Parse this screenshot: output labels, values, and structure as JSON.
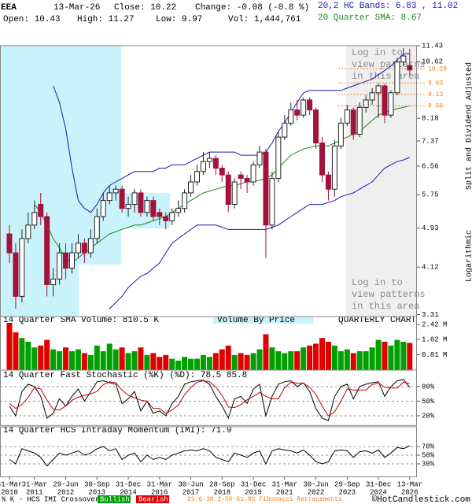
{
  "header": {
    "symbol": "EEA",
    "date": "13-Mar-26",
    "close": "Close: 10.22",
    "change": "Change: -0.08 (-0.8 %)",
    "open": "Open: 10.43",
    "high": "High: 11.27",
    "low": "Low: 9.97",
    "volume": "Vol: 1,444,761",
    "bands": "20,2 HC Bands: 6.83 , 11.02",
    "sma": "20 Quarter SMA: 8.67"
  },
  "side_labels": {
    "adjusted": "Split and Dividend Adjusted",
    "scale": "Logarithmic"
  },
  "overlay": {
    "login": [
      "Log in to",
      "view patterns",
      "in this area"
    ]
  },
  "chart_data": [
    {
      "type": "candlestick",
      "categories": [
        {
          "date": "31-Mar",
          "year": "2010"
        },
        null,
        null,
        null,
        {
          "date": "31-Mar",
          "year": "2011"
        },
        null,
        null,
        null,
        null,
        {
          "date": "29-Jun",
          "year": "2012"
        },
        null,
        null,
        null,
        null,
        {
          "date": "30-Sep",
          "year": "2013"
        },
        null,
        null,
        null,
        null,
        {
          "date": "31-Dec",
          "year": "2014"
        },
        null,
        null,
        null,
        null,
        {
          "date": "31-Mar",
          "year": "2016"
        },
        null,
        null,
        null,
        null,
        {
          "date": "30-Jun",
          "year": "2017"
        },
        null,
        null,
        null,
        null,
        {
          "date": "28-Sep",
          "year": "2018"
        },
        null,
        null,
        null,
        null,
        {
          "date": "31-Dec",
          "year": "2019"
        },
        null,
        null,
        null,
        null,
        {
          "date": "31-Mar",
          "year": "2021"
        },
        null,
        null,
        null,
        null,
        {
          "date": "30-Jun",
          "year": "2022"
        },
        null,
        null,
        null,
        null,
        {
          "date": "29-Sep",
          "year": "2023"
        },
        null,
        null,
        null,
        null,
        {
          "date": "31-Dec",
          "year": "2024"
        },
        null,
        null,
        null,
        null,
        {
          "date": "13-Mar",
          "year": "2026"
        }
      ],
      "open": [
        4.8,
        4.4,
        3.6,
        4.7,
        5.0,
        5.5,
        5.2,
        3.8,
        3.9,
        4.4,
        4.1,
        4.4,
        4.6,
        4.4,
        4.7,
        5.2,
        5.6,
        5.8,
        5.9,
        5.4,
        5.5,
        5.8,
        5.3,
        5.6,
        5.3,
        5.2,
        5.1,
        5.3,
        5.4,
        5.8,
        6.1,
        6.4,
        6.7,
        6.8,
        6.5,
        6.3,
        5.5,
        6.3,
        6.2,
        6.1,
        6.6,
        7.0,
        5.0,
        6.2,
        7.5,
        8.0,
        8.5,
        8.3,
        8.9,
        8.5,
        7.3,
        6.3,
        5.9,
        7.2,
        8.0,
        8.5,
        7.6,
        8.6,
        8.9,
        9.2,
        9.5,
        8.3,
        9.2,
        10.6,
        10.43
      ],
      "high": [
        5.0,
        4.6,
        4.9,
        5.3,
        5.6,
        5.8,
        5.3,
        4.1,
        4.6,
        4.6,
        4.6,
        4.8,
        4.7,
        4.9,
        5.4,
        5.8,
        6.0,
        6.0,
        6.0,
        5.7,
        5.9,
        5.9,
        5.7,
        5.7,
        5.4,
        5.3,
        5.4,
        5.6,
        5.9,
        6.3,
        6.6,
        7.0,
        7.0,
        6.9,
        6.6,
        6.4,
        6.2,
        6.4,
        6.3,
        6.7,
        7.2,
        7.1,
        6.4,
        7.7,
        8.3,
        8.8,
        8.9,
        9.0,
        9.0,
        8.6,
        7.5,
        6.4,
        7.4,
        8.2,
        8.7,
        8.6,
        8.8,
        9.1,
        9.4,
        9.6,
        9.6,
        9.3,
        10.8,
        11.3,
        11.27
      ],
      "low": [
        4.2,
        3.4,
        3.5,
        4.6,
        4.9,
        5.0,
        3.6,
        3.6,
        3.8,
        3.9,
        4.0,
        4.3,
        4.2,
        4.3,
        4.6,
        5.1,
        5.5,
        5.6,
        5.3,
        5.2,
        5.3,
        5.2,
        5.2,
        5.1,
        5.0,
        4.9,
        5.0,
        5.2,
        5.3,
        5.7,
        6.0,
        6.3,
        6.5,
        6.3,
        6.1,
        5.3,
        5.4,
        5.9,
        5.8,
        6.0,
        6.5,
        4.3,
        4.9,
        6.1,
        7.4,
        7.9,
        8.1,
        8.2,
        8.3,
        7.1,
        6.1,
        5.6,
        5.7,
        7.1,
        7.9,
        7.4,
        7.5,
        8.4,
        8.7,
        8.2,
        8.0,
        8.2,
        9.1,
        10.4,
        9.97
      ],
      "close": [
        4.4,
        3.6,
        4.7,
        5.0,
        5.3,
        5.2,
        3.8,
        3.9,
        4.4,
        4.1,
        4.4,
        4.6,
        4.4,
        4.7,
        5.2,
        5.6,
        5.8,
        5.9,
        5.4,
        5.5,
        5.8,
        5.3,
        5.6,
        5.2,
        5.2,
        5.1,
        5.3,
        5.4,
        5.8,
        6.1,
        6.4,
        6.7,
        6.8,
        6.5,
        6.3,
        5.5,
        6.1,
        6.2,
        6.1,
        6.6,
        7.0,
        5.0,
        6.2,
        7.5,
        8.0,
        8.5,
        8.3,
        8.9,
        8.5,
        7.3,
        6.3,
        5.9,
        7.2,
        8.0,
        8.5,
        7.6,
        8.6,
        8.9,
        9.2,
        9.5,
        8.3,
        9.2,
        10.6,
        10.9,
        10.22
      ],
      "up_color": "#1f7a1f",
      "down_color": "#a3123c",
      "log_scale": true,
      "ylim": [
        3.28,
        11.43
      ],
      "yticks": [
        3.31,
        4.12,
        4.93,
        5.75,
        6.56,
        7.37,
        8.18,
        10.62,
        11.43
      ],
      "overlays": [
        {
          "color": "#1a1ab0",
          "values": [
            null,
            null,
            null,
            null,
            null,
            null,
            null,
            9.5,
            8.8,
            7.8,
            6.5,
            5.6,
            5.4,
            5.3,
            5.5,
            5.8,
            6.0,
            6.1,
            6.2,
            6.3,
            6.4,
            6.4,
            6.4,
            6.4,
            6.5,
            6.5,
            6.6,
            6.6,
            6.6,
            6.7,
            6.8,
            6.9,
            7.0,
            7.0,
            7.0,
            7.0,
            7.0,
            6.9,
            6.9,
            6.9,
            6.9,
            7.0,
            7.3,
            7.7,
            8.0,
            8.4,
            8.8,
            9.2,
            9.3,
            9.3,
            9.3,
            9.3,
            9.3,
            9.3,
            9.4,
            9.5,
            9.6,
            9.7,
            9.8,
            10.0,
            10.2,
            10.4,
            10.7,
            11.0,
            11.02
          ]
        },
        {
          "color": "#1a1ab0",
          "values": [
            null,
            null,
            null,
            null,
            null,
            null,
            null,
            null,
            null,
            null,
            null,
            null,
            null,
            null,
            null,
            null,
            3.4,
            3.5,
            3.6,
            3.75,
            3.85,
            3.95,
            4.0,
            4.1,
            4.2,
            4.4,
            4.6,
            4.7,
            4.8,
            4.9,
            5.0,
            5.0,
            5.0,
            5.0,
            4.95,
            4.9,
            4.9,
            4.9,
            4.9,
            4.9,
            4.9,
            4.9,
            4.95,
            5.0,
            5.1,
            5.2,
            5.3,
            5.4,
            5.5,
            5.5,
            5.5,
            5.55,
            5.6,
            5.7,
            5.75,
            5.8,
            5.9,
            6.0,
            6.1,
            6.3,
            6.5,
            6.6,
            6.7,
            6.75,
            6.83
          ]
        },
        {
          "color": "#1a8a1a",
          "values": [
            null,
            null,
            null,
            null,
            5.5,
            5.3,
            5.0,
            4.7,
            4.5,
            4.3,
            4.2,
            4.3,
            4.4,
            4.5,
            4.6,
            4.7,
            4.8,
            4.85,
            4.9,
            4.95,
            5.0,
            5.0,
            5.05,
            5.1,
            5.15,
            5.2,
            5.3,
            5.4,
            5.5,
            5.6,
            5.7,
            5.8,
            5.85,
            5.9,
            5.95,
            6.0,
            6.0,
            6.05,
            6.1,
            6.1,
            6.15,
            6.2,
            6.3,
            6.5,
            6.7,
            6.9,
            7.0,
            7.1,
            7.15,
            7.2,
            7.2,
            7.2,
            7.3,
            7.4,
            7.5,
            7.6,
            7.7,
            7.9,
            8.1,
            8.3,
            8.4,
            8.5,
            8.55,
            8.6,
            8.67
          ]
        }
      ],
      "fibonacci": {
        "color": "#f08020",
        "levels": [
          10.28,
          9.63,
          9.13,
          8.66
        ]
      }
    },
    {
      "type": "bar",
      "title": "14 Quarter SMA Volume: 810.5 K",
      "subtitle": "Volume By Price",
      "label": "QUARTERLY CHART",
      "values": [
        2.5,
        2.0,
        1.7,
        1.5,
        1.2,
        1.3,
        1.6,
        1.1,
        1.0,
        1.2,
        1.0,
        1.1,
        0.9,
        0.8,
        1.3,
        1.0,
        1.4,
        1.1,
        1.2,
        0.9,
        1.0,
        1.2,
        0.8,
        0.9,
        0.7,
        0.8,
        0.6,
        0.5,
        0.7,
        0.6,
        0.6,
        0.8,
        0.7,
        0.9,
        1.1,
        1.3,
        0.8,
        0.9,
        0.8,
        0.9,
        1.1,
        1.9,
        1.2,
        1.0,
        0.9,
        1.0,
        1.0,
        1.2,
        1.3,
        1.4,
        1.7,
        1.5,
        1.3,
        1.0,
        1.1,
        0.9,
        1.0,
        1.0,
        1.2,
        1.6,
        1.5,
        1.3,
        1.6,
        1.5,
        1.44
      ],
      "up_color": "#00a000",
      "down_color": "#e00000",
      "ylim": [
        0,
        2.5
      ],
      "yticks": [
        {
          "value": 0.81,
          "label": "0.81 M"
        },
        {
          "value": 1.62,
          "label": "1.62 M"
        },
        {
          "value": 2.42,
          "label": "2.42 M"
        }
      ]
    },
    {
      "type": "line",
      "title": "14 Quarter Fast Stochastic (%K) (%D): 78.5 85.8",
      "series": [
        {
          "color": "#000000",
          "values": [
            40,
            20,
            70,
            85,
            80,
            60,
            15,
            25,
            55,
            40,
            60,
            75,
            50,
            70,
            90,
            92,
            88,
            85,
            45,
            55,
            70,
            30,
            50,
            25,
            30,
            20,
            45,
            60,
            85,
            90,
            92,
            93,
            85,
            60,
            40,
            15,
            55,
            60,
            45,
            75,
            85,
            20,
            60,
            85,
            90,
            92,
            80,
            88,
            70,
            35,
            15,
            10,
            60,
            80,
            85,
            55,
            80,
            85,
            88,
            90,
            60,
            80,
            92,
            95,
            78.5
          ]
        },
        {
          "color": "#c00000",
          "values": [
            45,
            35,
            43,
            58,
            78,
            75,
            52,
            33,
            32,
            40,
            52,
            58,
            62,
            65,
            70,
            84,
            90,
            88,
            73,
            62,
            57,
            52,
            50,
            35,
            35,
            25,
            32,
            42,
            63,
            78,
            89,
            92,
            90,
            79,
            62,
            38,
            37,
            43,
            53,
            60,
            68,
            60,
            55,
            55,
            78,
            89,
            87,
            87,
            79,
            64,
            40,
            20,
            28,
            50,
            75,
            73,
            73,
            73,
            84,
            88,
            79,
            77,
            77,
            89,
            85.8
          ]
        }
      ],
      "ylim": [
        0,
        100
      ],
      "grid": true,
      "yticks": [
        {
          "value": 20,
          "label": "20%"
        },
        {
          "value": 50,
          "label": "50%"
        },
        {
          "value": 80,
          "label": "80%"
        }
      ]
    },
    {
      "type": "line",
      "title": "14 Quarter HCS Intraday Momentum (IMI): 71.9",
      "series": [
        {
          "color": "#000000",
          "values": [
            40,
            30,
            65,
            60,
            55,
            45,
            25,
            40,
            55,
            50,
            55,
            60,
            50,
            55,
            65,
            70,
            60,
            65,
            40,
            50,
            55,
            35,
            50,
            40,
            45,
            40,
            50,
            55,
            60,
            62,
            60,
            65,
            60,
            45,
            40,
            35,
            55,
            50,
            45,
            55,
            60,
            30,
            60,
            65,
            62,
            60,
            55,
            62,
            50,
            35,
            30,
            35,
            60,
            62,
            60,
            45,
            58,
            60,
            55,
            62,
            45,
            55,
            68,
            65,
            71.9
          ]
        }
      ],
      "ylim": [
        0,
        100
      ],
      "grid": true,
      "yticks": [
        {
          "value": 30,
          "label": "30%"
        },
        {
          "value": 50,
          "label": "50%"
        },
        {
          "value": 70,
          "label": "70%"
        }
      ]
    }
  ],
  "footer": {
    "crossover": "% K - HCS IMI Crossover,",
    "bullish": "Bullish",
    "bearish": "Bearish",
    "fibonacci": "23.6-38.2-50-61.8% Fibonacci Retracements",
    "copyright": "©HotCandlestick.com"
  }
}
